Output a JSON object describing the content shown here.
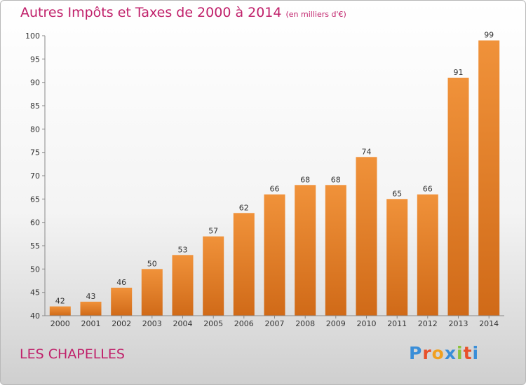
{
  "chart_data": {
    "type": "bar",
    "title": "Autres Impôts et Taxes de 2000 à 2014",
    "subtitle": "(en milliers d'€)",
    "categories": [
      "2000",
      "2001",
      "2002",
      "2003",
      "2004",
      "2005",
      "2006",
      "2007",
      "2008",
      "2009",
      "2010",
      "2011",
      "2012",
      "2013",
      "2014"
    ],
    "values": [
      42,
      43,
      46,
      50,
      53,
      57,
      62,
      66,
      68,
      68,
      74,
      65,
      66,
      91,
      99
    ],
    "ylim": [
      40,
      100
    ],
    "yticks": [
      40,
      45,
      50,
      55,
      60,
      65,
      70,
      75,
      80,
      85,
      90,
      95,
      100
    ],
    "grid": false,
    "bar_color": "#f0923a",
    "bar_color_dark": "#d06a18",
    "label_color": "#333333"
  },
  "footer": {
    "commune": "LES CHAPELLES",
    "brand": "Proxiti",
    "brand_colors": [
      "#3a8ed8",
      "#e8512a",
      "#f0a020",
      "#3a8ed8",
      "#8bc33c",
      "#e8512a",
      "#3a8ed8"
    ]
  },
  "colors": {
    "title": "#c0206a",
    "axis": "#888888"
  }
}
